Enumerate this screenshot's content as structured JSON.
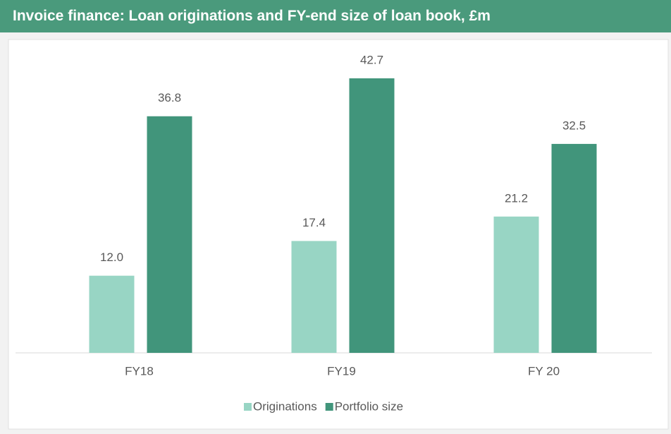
{
  "chart_data": {
    "type": "bar",
    "title": "Invoice finance: Loan originations and FY-end size of loan book, £m",
    "categories": [
      "FY18",
      "FY19",
      "FY 20"
    ],
    "series": [
      {
        "name": "Originations",
        "color": "#98d5c4",
        "values": [
          12.0,
          17.4,
          21.2
        ],
        "value_labels": [
          "12.0",
          "17.4",
          "21.2"
        ]
      },
      {
        "name": "Portfolio size",
        "color": "#41957b",
        "values": [
          36.8,
          42.7,
          32.5
        ]
      }
    ],
    "legend": "bottom"
  }
}
